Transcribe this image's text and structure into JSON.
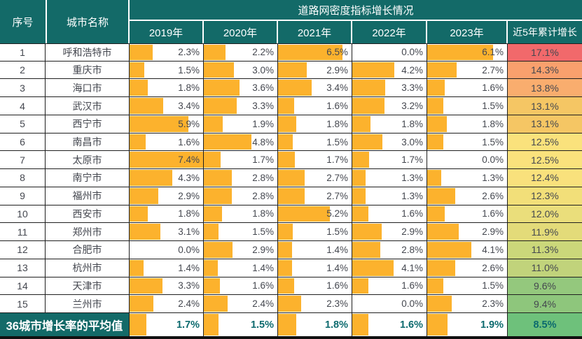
{
  "header": {
    "rank": "序号",
    "city": "城市名称",
    "title": "道路网密度指标增长情况",
    "years": [
      "2019年",
      "2020年",
      "2021年",
      "2022年",
      "2023年"
    ],
    "cumulative": "近5年累计增长"
  },
  "colors": {
    "header_bg": "#136A68",
    "header_text": "#FFFFFF",
    "data_bar": "#FCB22D",
    "gridline": "#1F1F1F",
    "value_text": "#44474F",
    "footer_value_text": "#0C6A6E",
    "cumulative_max_red": "#F1696B",
    "cumulative_mid_yellow": "#FAE27C",
    "cumulative_min_green": "#6EC17B"
  },
  "chart_data": {
    "type": "table",
    "title": "道路网密度指标增长情况",
    "columns": [
      "序号",
      "城市名称",
      "2019年",
      "2020年",
      "2021年",
      "2022年",
      "2023年",
      "近5年累计增长"
    ],
    "bar_scale_max_percent": 7.4,
    "rows": [
      {
        "rank": 1,
        "city": "呼和浩特市",
        "yearly_growth_percent": [
          2.3,
          2.2,
          6.5,
          0.0,
          6.1
        ],
        "cumulative_percent": 17.1,
        "cumulative_color": "#F1696B"
      },
      {
        "rank": 2,
        "city": "重庆市",
        "yearly_growth_percent": [
          1.5,
          3.0,
          2.9,
          4.2,
          2.7
        ],
        "cumulative_percent": 14.3,
        "cumulative_color": "#F9A06D"
      },
      {
        "rank": 3,
        "city": "海口市",
        "yearly_growth_percent": [
          1.8,
          3.6,
          3.4,
          3.3,
          1.6
        ],
        "cumulative_percent": 13.8,
        "cumulative_color": "#F9AD6E"
      },
      {
        "rank": 4,
        "city": "武汉市",
        "yearly_growth_percent": [
          3.4,
          3.3,
          1.6,
          3.2,
          1.5
        ],
        "cumulative_percent": 13.1,
        "cumulative_color": "#F5C664"
      },
      {
        "rank": 5,
        "city": "西宁市",
        "yearly_growth_percent": [
          5.9,
          1.9,
          1.8,
          1.8,
          1.8
        ],
        "cumulative_percent": 13.1,
        "cumulative_color": "#F5C664"
      },
      {
        "rank": 6,
        "city": "南昌市",
        "yearly_growth_percent": [
          1.6,
          4.8,
          1.5,
          3.0,
          1.5
        ],
        "cumulative_percent": 12.5,
        "cumulative_color": "#FAE27C"
      },
      {
        "rank": 7,
        "city": "太原市",
        "yearly_growth_percent": [
          7.4,
          1.7,
          1.7,
          1.7,
          0.0
        ],
        "cumulative_percent": 12.5,
        "cumulative_color": "#FAE27C"
      },
      {
        "rank": 8,
        "city": "南宁市",
        "yearly_growth_percent": [
          4.3,
          2.8,
          2.7,
          1.3,
          1.3
        ],
        "cumulative_percent": 12.4,
        "cumulative_color": "#F9E17C"
      },
      {
        "rank": 9,
        "city": "福州市",
        "yearly_growth_percent": [
          2.9,
          2.8,
          2.7,
          1.3,
          2.6
        ],
        "cumulative_percent": 12.3,
        "cumulative_color": "#F2DF79"
      },
      {
        "rank": 10,
        "city": "西安市",
        "yearly_growth_percent": [
          1.8,
          1.8,
          5.2,
          1.6,
          1.6
        ],
        "cumulative_percent": 12.0,
        "cumulative_color": "#EADE7B"
      },
      {
        "rank": 11,
        "city": "郑州市",
        "yearly_growth_percent": [
          3.1,
          1.5,
          1.5,
          2.9,
          2.9
        ],
        "cumulative_percent": 11.9,
        "cumulative_color": "#E3DB79"
      },
      {
        "rank": 12,
        "city": "合肥市",
        "yearly_growth_percent": [
          0.0,
          2.9,
          1.4,
          2.8,
          4.1
        ],
        "cumulative_percent": 11.3,
        "cumulative_color": "#CBD77A"
      },
      {
        "rank": 13,
        "city": "杭州市",
        "yearly_growth_percent": [
          1.4,
          1.4,
          1.4,
          4.1,
          2.6
        ],
        "cumulative_percent": 11.0,
        "cumulative_color": "#C1D37B"
      },
      {
        "rank": 14,
        "city": "天津市",
        "yearly_growth_percent": [
          3.3,
          1.6,
          1.6,
          1.6,
          1.5
        ],
        "cumulative_percent": 9.6,
        "cumulative_color": "#94C87D"
      },
      {
        "rank": 15,
        "city": "兰州市",
        "yearly_growth_percent": [
          2.4,
          2.4,
          2.3,
          0.0,
          2.3
        ],
        "cumulative_percent": 9.4,
        "cumulative_color": "#8EC67C"
      }
    ],
    "average_row": {
      "label": "36城市增长率的平均值",
      "yearly_growth_percent": [
        1.7,
        1.5,
        1.8,
        1.6,
        1.9
      ],
      "cumulative_percent": 8.5,
      "cumulative_color": "#6EC17B"
    }
  }
}
